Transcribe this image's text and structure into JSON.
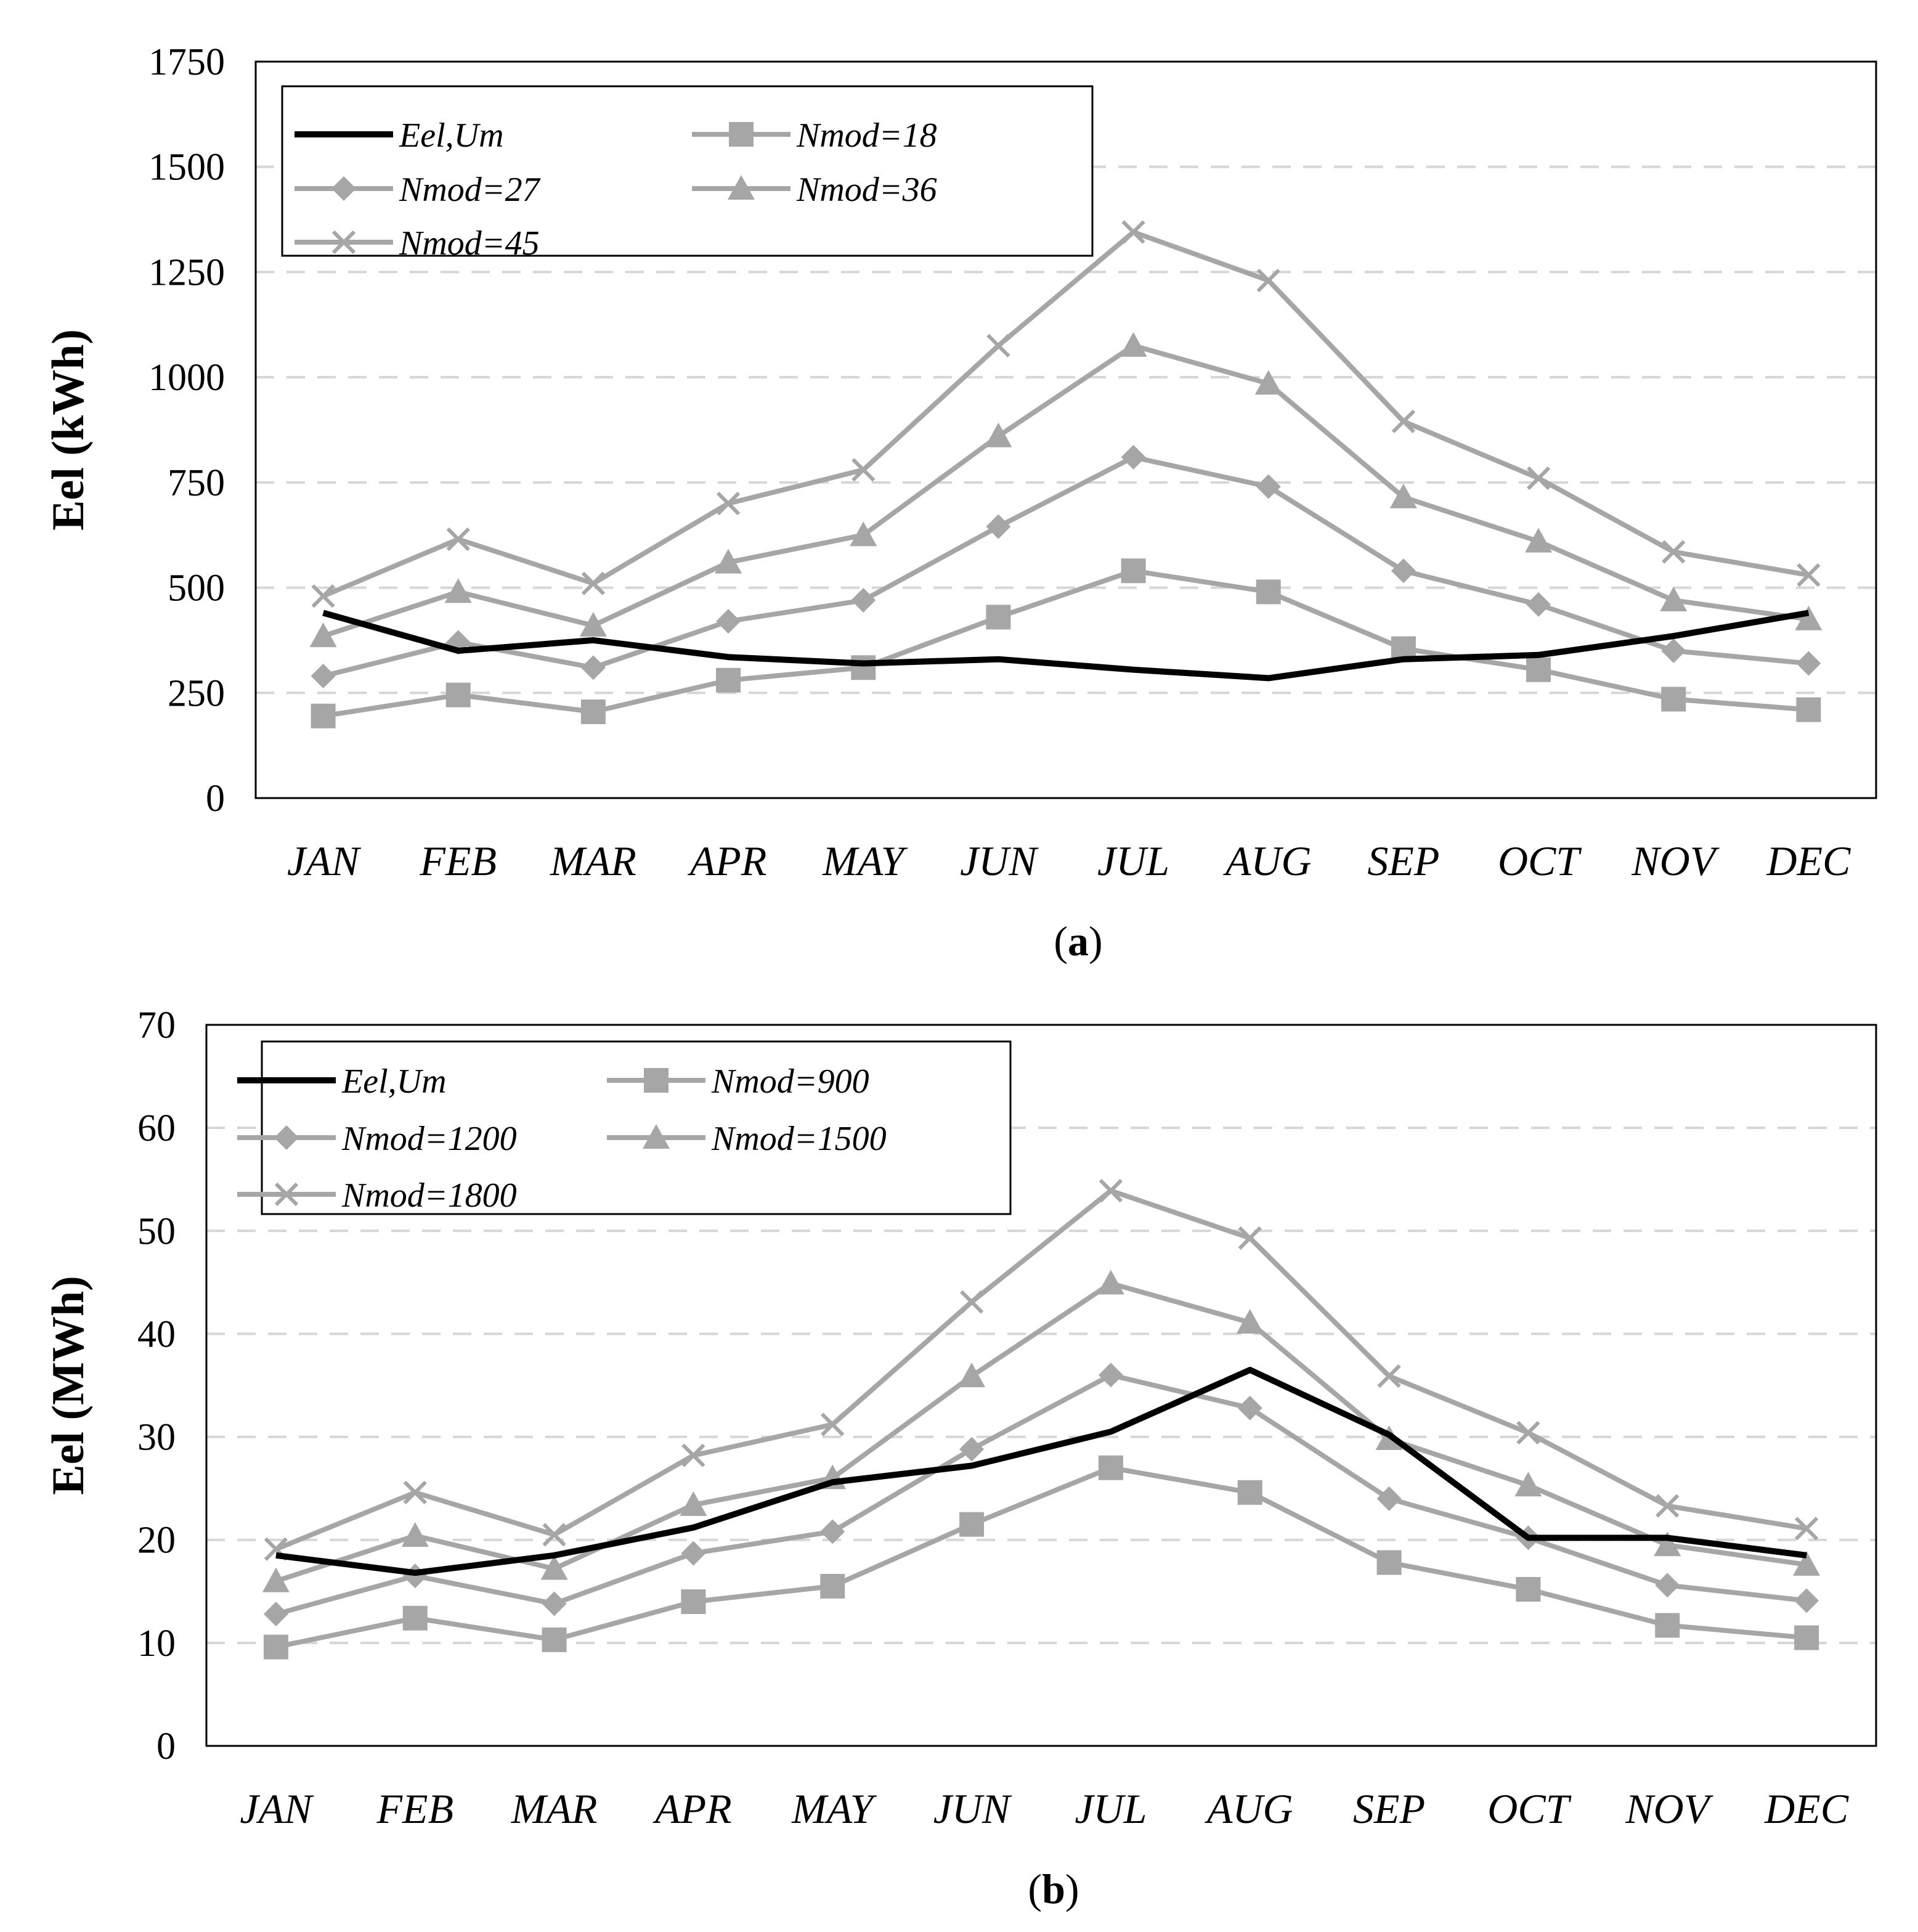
{
  "chart_data": [
    {
      "type": "line",
      "panel_label": "a",
      "categories": [
        "JAN",
        "FEB",
        "MAR",
        "APR",
        "MAY",
        "JUN",
        "JUL",
        "AUG",
        "SEP",
        "OCT",
        "NOV",
        "DEC"
      ],
      "ylabel": "Eel (kWh)",
      "xlabel": "",
      "ylim": [
        0,
        1750
      ],
      "yticks": [
        0,
        250,
        500,
        750,
        1000,
        1250,
        1500,
        1750
      ],
      "grid": "horizontal dashed",
      "legend_position": "top-left",
      "series": [
        {
          "name": "Eel,Um",
          "marker": "none",
          "color": "#000000",
          "values": [
            440,
            350,
            375,
            335,
            320,
            330,
            305,
            285,
            330,
            340,
            385,
            440
          ]
        },
        {
          "name": "Nmod=18",
          "marker": "square",
          "color": "#a6a6a6",
          "values": [
            195,
            245,
            205,
            280,
            310,
            430,
            540,
            490,
            355,
            305,
            235,
            210
          ]
        },
        {
          "name": "Nmod=27",
          "marker": "diamond",
          "color": "#a6a6a6",
          "values": [
            290,
            370,
            310,
            420,
            470,
            645,
            810,
            740,
            540,
            460,
            350,
            320
          ]
        },
        {
          "name": "Nmod=36",
          "marker": "triangle",
          "color": "#a6a6a6",
          "values": [
            385,
            490,
            410,
            560,
            625,
            860,
            1075,
            985,
            715,
            610,
            470,
            425
          ]
        },
        {
          "name": "Nmod=45",
          "marker": "x",
          "color": "#a6a6a6",
          "values": [
            480,
            615,
            510,
            700,
            780,
            1075,
            1345,
            1230,
            895,
            760,
            585,
            530
          ]
        }
      ]
    },
    {
      "type": "line",
      "panel_label": "b",
      "categories": [
        "JAN",
        "FEB",
        "MAR",
        "APR",
        "MAY",
        "JUN",
        "JUL",
        "AUG",
        "SEP",
        "OCT",
        "NOV",
        "DEC"
      ],
      "ylabel": "Eel (MWh)",
      "xlabel": "",
      "ylim": [
        0,
        70
      ],
      "yticks": [
        0,
        10,
        20,
        30,
        40,
        50,
        60,
        70
      ],
      "grid": "horizontal dashed",
      "legend_position": "top-left",
      "series": [
        {
          "name": "Eel,Um",
          "marker": "none",
          "color": "#000000",
          "values": [
            18.5,
            16.8,
            18.5,
            21.2,
            25.6,
            27.2,
            30.5,
            36.5,
            30.2,
            20.2,
            20.2,
            18.5
          ]
        },
        {
          "name": "Nmod=900",
          "marker": "square",
          "color": "#a6a6a6",
          "values": [
            9.6,
            12.4,
            10.3,
            14.0,
            15.5,
            21.5,
            27.0,
            24.6,
            17.8,
            15.2,
            11.7,
            10.5
          ]
        },
        {
          "name": "Nmod=1200",
          "marker": "diamond",
          "color": "#a6a6a6",
          "values": [
            12.8,
            16.5,
            13.8,
            18.7,
            20.8,
            28.8,
            36.0,
            32.8,
            24.0,
            20.2,
            15.6,
            14.1
          ]
        },
        {
          "name": "Nmod=1500",
          "marker": "triangle",
          "color": "#a6a6a6",
          "values": [
            16.0,
            20.4,
            17.2,
            23.4,
            26.0,
            35.9,
            44.9,
            41.1,
            29.8,
            25.3,
            19.5,
            17.6
          ]
        },
        {
          "name": "Nmod=1800",
          "marker": "x",
          "color": "#a6a6a6",
          "values": [
            19.1,
            24.6,
            20.5,
            28.2,
            31.2,
            43.1,
            53.9,
            49.3,
            35.9,
            30.4,
            23.3,
            21.1
          ]
        }
      ]
    }
  ]
}
